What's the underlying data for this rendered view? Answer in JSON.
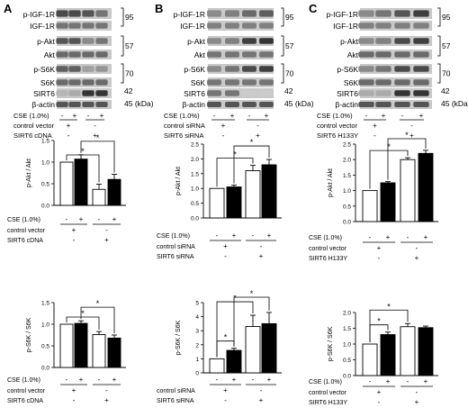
{
  "panels": [
    {
      "letter": "A",
      "blot_rows": [
        "p-IGF-1R",
        "IGF-1R",
        "p-Akt",
        "Akt",
        "p-S6K",
        "S6K",
        "SIRT6",
        "β-actin"
      ],
      "kda": [
        "95",
        "57",
        "70",
        "42",
        "45 (kDa)"
      ],
      "cse_label": "CSE (1.0%)",
      "cse_marks": [
        "-",
        "+",
        "-",
        "+"
      ],
      "group1_label": "control vector",
      "group1_marks": [
        "+",
        "-"
      ],
      "group2_label": "SIRT6 cDNA",
      "group2_marks": [
        "-",
        "+"
      ],
      "charts": [
        {
          "type": "bar",
          "ylabel": "p-Akt / Akt",
          "ylim": [
            0,
            1.5
          ],
          "yticks": [
            "0.0",
            "0.5",
            "1.0",
            "1.5"
          ],
          "categories": [
            "CSE -",
            "CSE +",
            "CSE -",
            "CSE +"
          ],
          "values": [
            1.0,
            1.07,
            0.37,
            0.6
          ],
          "errors": [
            0.0,
            0.1,
            0.12,
            0.12
          ],
          "fills": [
            "white",
            "black",
            "white",
            "black"
          ],
          "significance": [
            {
              "from": 0,
              "to": 2,
              "label": "*"
            },
            {
              "from": 1,
              "to": 3,
              "label": "*"
            }
          ],
          "cse_label": "CSE (1.0%)",
          "cse_marks": [
            "-",
            "+",
            "-",
            "+"
          ],
          "group1_label": "control vector",
          "group1_marks": [
            "+",
            "-"
          ],
          "group2_label": "SIRT6 cDNA",
          "group2_marks": [
            "-",
            "+"
          ]
        },
        {
          "type": "bar",
          "ylabel": "p-S6K / S6K",
          "ylim": [
            0,
            1.5
          ],
          "yticks": [
            "0.0",
            "0.5",
            "1.0",
            "1.5"
          ],
          "categories": [
            "CSE -",
            "CSE +",
            "CSE -",
            "CSE +"
          ],
          "values": [
            1.0,
            1.02,
            0.76,
            0.68
          ],
          "errors": [
            0.0,
            0.06,
            0.07,
            0.07
          ],
          "fills": [
            "white",
            "black",
            "white",
            "black"
          ],
          "significance": [
            {
              "from": 0,
              "to": 2,
              "label": "*"
            },
            {
              "from": 1,
              "to": 3,
              "label": "*"
            }
          ],
          "cse_label": "CSE (1.0%)",
          "cse_marks": [
            "-",
            "+",
            "-",
            "+"
          ],
          "group1_label": "control vector",
          "group1_marks": [
            "+",
            "-"
          ],
          "group2_label": "SIRT6 cDNA",
          "group2_marks": [
            "-",
            "+"
          ]
        }
      ]
    },
    {
      "letter": "B",
      "blot_rows": [
        "p-IGF-1R",
        "IGF-1R",
        "p-Akt",
        "Akt",
        "p-S6K",
        "S6K",
        "SIRT6",
        "β-actin"
      ],
      "kda": [
        "95",
        "57",
        "70",
        "42",
        "45 (kDa)"
      ],
      "cse_label": "CSE (1.0%)",
      "cse_marks": [
        "-",
        "+",
        "-",
        "+"
      ],
      "group1_label": "control siRNA",
      "group1_marks": [
        "+",
        "-"
      ],
      "group2_label": "SIRT6 siRNA",
      "group2_marks": [
        "-",
        "+"
      ],
      "charts": [
        {
          "type": "bar",
          "ylabel": "p-Akt / Akt",
          "ylim": [
            0,
            2.5
          ],
          "yticks": [
            "0.0",
            "0.5",
            "1.0",
            "1.5",
            "2.0",
            "2.5"
          ],
          "categories": [
            "CSE -",
            "CSE +",
            "CSE -",
            "CSE +"
          ],
          "values": [
            1.0,
            1.05,
            1.6,
            1.8
          ],
          "errors": [
            0.0,
            0.06,
            0.18,
            0.18
          ],
          "fills": [
            "white",
            "black",
            "white",
            "black"
          ],
          "significance": [
            {
              "from": 0,
              "to": 2,
              "label": "*"
            },
            {
              "from": 1,
              "to": 3,
              "label": "*"
            }
          ],
          "cse_label": "CSE (1.0%)",
          "cse_marks": [
            "-",
            "+",
            "-",
            "+"
          ],
          "group1_label": "control siRNA",
          "group1_marks": [
            "+",
            "-"
          ],
          "group2_label": "SIRT6 siRNA",
          "group2_marks": [
            "-",
            "+"
          ]
        },
        {
          "type": "bar",
          "ylabel": "p-S6K / S6K",
          "ylim": [
            0,
            5
          ],
          "yticks": [
            "0",
            "1",
            "2",
            "3",
            "4",
            "5"
          ],
          "categories": [
            "CSE -",
            "CSE +",
            "CSE -",
            "CSE +"
          ],
          "values": [
            1.0,
            1.6,
            3.3,
            3.5
          ],
          "errors": [
            0.0,
            0.15,
            0.8,
            0.8
          ],
          "fills": [
            "white",
            "black",
            "white",
            "black"
          ],
          "significance": [
            {
              "from": 0,
              "to": 1,
              "label": "*"
            },
            {
              "from": 0,
              "to": 2,
              "label": "*"
            },
            {
              "from": 1,
              "to": 3,
              "label": "*"
            }
          ],
          "cse_label": "",
          "cse_marks": [
            "-",
            "+",
            "-",
            "+"
          ],
          "group1_label": "control siRNA",
          "group1_marks": [
            "+",
            "-"
          ],
          "group2_label": "SIRT6 siRNA",
          "group2_marks": [
            "-",
            "+"
          ]
        }
      ]
    },
    {
      "letter": "C",
      "blot_rows": [
        "p-IGF-1R",
        "IGF-1R",
        "p-Akt",
        "Akt",
        "p-S6K",
        "S6K",
        "SIRT6",
        "β-actin"
      ],
      "kda": [
        "95",
        "57",
        "70",
        "42",
        "45 (kDa)"
      ],
      "cse_label": "CSE (1.0%)",
      "cse_marks": [
        "-",
        "+",
        "-",
        "+"
      ],
      "group1_label": "control vector",
      "group1_marks": [
        "+",
        "-"
      ],
      "group2_label": "SIRT6 H133Y",
      "group2_marks": [
        "-",
        "+"
      ],
      "charts": [
        {
          "type": "bar",
          "ylabel": "p-Akt / Akt",
          "ylim": [
            0,
            2.5
          ],
          "yticks": [
            "0.0",
            "0.5",
            "1.0",
            "1.5",
            "2.0",
            "2.5"
          ],
          "categories": [
            "CSE -",
            "CSE +",
            "CSE -",
            "CSE +"
          ],
          "values": [
            1.0,
            1.25,
            2.0,
            2.2
          ],
          "errors": [
            0.0,
            0.04,
            0.06,
            0.1
          ],
          "fills": [
            "white",
            "black",
            "white",
            "black"
          ],
          "significance": [
            {
              "from": 0,
              "to": 2,
              "label": "*"
            },
            {
              "from": 1,
              "to": 3,
              "label": "*"
            }
          ],
          "cse_label": "CSE (1.0%)",
          "cse_marks": [
            "-",
            "+",
            "-",
            "+"
          ],
          "group1_label": "control vector",
          "group1_marks": [
            "+",
            "-"
          ],
          "group2_label": "SIRT6 H133Y",
          "group2_marks": [
            "-",
            "+"
          ]
        },
        {
          "type": "bar",
          "ylabel": "p-S6K / S6K",
          "ylim": [
            0,
            2.0
          ],
          "yticks": [
            "0.0",
            "0.5",
            "1.0",
            "1.5",
            "2.0"
          ],
          "categories": [
            "CSE -",
            "CSE +",
            "CSE -",
            "CSE +"
          ],
          "values": [
            1.0,
            1.3,
            1.55,
            1.52
          ],
          "errors": [
            0.0,
            0.08,
            0.1,
            0.05
          ],
          "fills": [
            "white",
            "black",
            "white",
            "black"
          ],
          "significance": [
            {
              "from": 0,
              "to": 1,
              "label": "*"
            },
            {
              "from": 0,
              "to": 2,
              "label": "*"
            }
          ],
          "cse_label": "CSE (1.0%)",
          "cse_marks": [
            "-",
            "+",
            "-",
            "+"
          ],
          "group1_label": "control vector",
          "group1_marks": [
            "+",
            "-"
          ],
          "group2_label": "SIRT6 H133Y",
          "group2_marks": [
            "-",
            "+"
          ]
        }
      ]
    }
  ]
}
